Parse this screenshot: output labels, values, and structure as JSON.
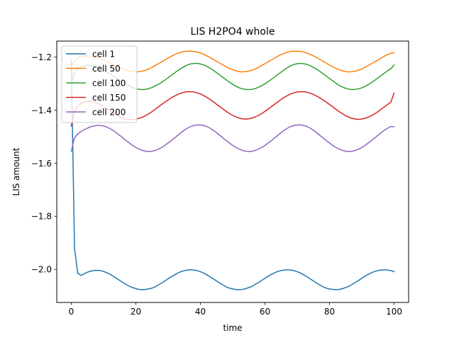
{
  "chart_data": {
    "type": "line",
    "title": "LIS H2PO4 whole",
    "xlabel": "time",
    "ylabel": "LIS amount",
    "xlim": [
      -4.5,
      104.5
    ],
    "ylim": [
      -2.125,
      -1.14
    ],
    "xticks": [
      0,
      20,
      40,
      60,
      80,
      100
    ],
    "yticks": [
      -2.0,
      -1.8,
      -1.6,
      -1.4,
      -1.2
    ],
    "ytick_labels": [
      "−2.0",
      "−1.8",
      "−1.6",
      "−1.4",
      "−1.2"
    ],
    "grid": false,
    "legend_position": "top-left",
    "x": [
      0,
      1,
      2,
      3,
      4,
      5,
      6,
      7,
      8,
      9,
      10,
      11,
      12,
      13,
      14,
      15,
      16,
      17,
      18,
      19,
      20,
      21,
      22,
      23,
      24,
      25,
      26,
      27,
      28,
      29,
      30,
      31,
      32,
      33,
      34,
      35,
      36,
      37,
      38,
      39,
      40,
      41,
      42,
      43,
      44,
      45,
      46,
      47,
      48,
      49,
      50,
      51,
      52,
      53,
      54,
      55,
      56,
      57,
      58,
      59,
      60,
      61,
      62,
      63,
      64,
      65,
      66,
      67,
      68,
      69,
      70,
      71,
      72,
      73,
      74,
      75,
      76,
      77,
      78,
      79,
      80,
      81,
      82,
      83,
      84,
      85,
      86,
      87,
      88,
      89,
      90,
      91,
      92,
      93,
      94,
      95,
      96,
      97,
      98,
      99,
      100
    ],
    "series": [
      {
        "name": "cell 1",
        "color": "#1f77b4",
        "values": [
          -1.21,
          -1.92,
          -2.015,
          -2.023,
          -2.017,
          -2.011,
          -2.007,
          -2.005,
          -2.004,
          -2.005,
          -2.008,
          -2.013,
          -2.019,
          -2.026,
          -2.034,
          -2.042,
          -2.05,
          -2.057,
          -2.064,
          -2.069,
          -2.073,
          -2.076,
          -2.077,
          -2.076,
          -2.074,
          -2.071,
          -2.066,
          -2.059,
          -2.052,
          -2.044,
          -2.036,
          -2.028,
          -2.021,
          -2.014,
          -2.009,
          -2.005,
          -2.003,
          -2.002,
          -2.003,
          -2.005,
          -2.009,
          -2.014,
          -2.021,
          -2.028,
          -2.036,
          -2.044,
          -2.052,
          -2.059,
          -2.066,
          -2.071,
          -2.074,
          -2.076,
          -2.077,
          -2.076,
          -2.073,
          -2.069,
          -2.064,
          -2.057,
          -2.05,
          -2.042,
          -2.034,
          -2.026,
          -2.019,
          -2.013,
          -2.008,
          -2.005,
          -2.003,
          -2.002,
          -2.003,
          -2.005,
          -2.009,
          -2.014,
          -2.021,
          -2.028,
          -2.036,
          -2.044,
          -2.052,
          -2.059,
          -2.066,
          -2.071,
          -2.074,
          -2.076,
          -2.077,
          -2.076,
          -2.073,
          -2.069,
          -2.064,
          -2.057,
          -2.05,
          -2.042,
          -2.034,
          -2.026,
          -2.019,
          -2.013,
          -2.008,
          -2.005,
          -2.003,
          -2.002,
          -2.003,
          -2.005,
          -2.009
        ]
      },
      {
        "name": "cell 50",
        "color": "#ff7f0e",
        "values": [
          -1.235,
          -1.215,
          -1.203,
          -1.199,
          -1.197,
          -1.196,
          -1.197,
          -1.199,
          -1.202,
          -1.206,
          -1.211,
          -1.217,
          -1.223,
          -1.229,
          -1.235,
          -1.241,
          -1.246,
          -1.25,
          -1.253,
          -1.255,
          -1.256,
          -1.255,
          -1.253,
          -1.25,
          -1.245,
          -1.239,
          -1.232,
          -1.225,
          -1.218,
          -1.211,
          -1.204,
          -1.197,
          -1.191,
          -1.186,
          -1.182,
          -1.179,
          -1.178,
          -1.178,
          -1.179,
          -1.181,
          -1.185,
          -1.19,
          -1.196,
          -1.202,
          -1.209,
          -1.216,
          -1.223,
          -1.23,
          -1.237,
          -1.243,
          -1.248,
          -1.252,
          -1.255,
          -1.256,
          -1.255,
          -1.253,
          -1.25,
          -1.245,
          -1.239,
          -1.232,
          -1.225,
          -1.218,
          -1.211,
          -1.204,
          -1.197,
          -1.191,
          -1.186,
          -1.182,
          -1.179,
          -1.178,
          -1.178,
          -1.179,
          -1.181,
          -1.185,
          -1.19,
          -1.196,
          -1.202,
          -1.209,
          -1.216,
          -1.223,
          -1.23,
          -1.237,
          -1.243,
          -1.248,
          -1.252,
          -1.255,
          -1.256,
          -1.255,
          -1.253,
          -1.25,
          -1.245,
          -1.239,
          -1.232,
          -1.225,
          -1.218,
          -1.211,
          -1.204,
          -1.197,
          -1.191,
          -1.186,
          -1.184
        ]
      },
      {
        "name": "cell 100",
        "color": "#2ca02c",
        "values": [
          -1.3,
          -1.26,
          -1.244,
          -1.237,
          -1.233,
          -1.231,
          -1.232,
          -1.234,
          -1.238,
          -1.243,
          -1.249,
          -1.256,
          -1.264,
          -1.272,
          -1.28,
          -1.288,
          -1.296,
          -1.303,
          -1.309,
          -1.315,
          -1.319,
          -1.322,
          -1.323,
          -1.322,
          -1.319,
          -1.315,
          -1.309,
          -1.303,
          -1.295,
          -1.287,
          -1.278,
          -1.269,
          -1.26,
          -1.251,
          -1.243,
          -1.236,
          -1.23,
          -1.226,
          -1.224,
          -1.224,
          -1.226,
          -1.23,
          -1.235,
          -1.242,
          -1.25,
          -1.259,
          -1.268,
          -1.277,
          -1.286,
          -1.295,
          -1.303,
          -1.31,
          -1.316,
          -1.32,
          -1.322,
          -1.323,
          -1.322,
          -1.319,
          -1.314,
          -1.308,
          -1.301,
          -1.293,
          -1.284,
          -1.275,
          -1.266,
          -1.257,
          -1.248,
          -1.24,
          -1.233,
          -1.228,
          -1.225,
          -1.224,
          -1.225,
          -1.228,
          -1.233,
          -1.239,
          -1.246,
          -1.254,
          -1.263,
          -1.272,
          -1.281,
          -1.29,
          -1.299,
          -1.307,
          -1.313,
          -1.318,
          -1.321,
          -1.323,
          -1.322,
          -1.32,
          -1.316,
          -1.311,
          -1.304,
          -1.296,
          -1.288,
          -1.279,
          -1.27,
          -1.261,
          -1.252,
          -1.244,
          -1.23
        ]
      },
      {
        "name": "cell 150",
        "color": "#d62728",
        "values": [
          -1.46,
          -1.405,
          -1.385,
          -1.375,
          -1.369,
          -1.367,
          -1.367,
          -1.369,
          -1.373,
          -1.379,
          -1.386,
          -1.394,
          -1.403,
          -1.411,
          -1.419,
          -1.426,
          -1.431,
          -1.434,
          -1.436,
          -1.436,
          -1.434,
          -1.431,
          -1.427,
          -1.421,
          -1.414,
          -1.406,
          -1.397,
          -1.388,
          -1.379,
          -1.37,
          -1.362,
          -1.354,
          -1.347,
          -1.341,
          -1.336,
          -1.333,
          -1.331,
          -1.331,
          -1.332,
          -1.335,
          -1.339,
          -1.345,
          -1.352,
          -1.36,
          -1.369,
          -1.378,
          -1.387,
          -1.396,
          -1.405,
          -1.413,
          -1.42,
          -1.426,
          -1.43,
          -1.433,
          -1.434,
          -1.433,
          -1.43,
          -1.426,
          -1.42,
          -1.413,
          -1.405,
          -1.396,
          -1.387,
          -1.378,
          -1.369,
          -1.36,
          -1.352,
          -1.345,
          -1.339,
          -1.335,
          -1.332,
          -1.331,
          -1.331,
          -1.333,
          -1.336,
          -1.341,
          -1.347,
          -1.354,
          -1.362,
          -1.37,
          -1.379,
          -1.388,
          -1.397,
          -1.406,
          -1.414,
          -1.421,
          -1.427,
          -1.431,
          -1.434,
          -1.435,
          -1.434,
          -1.431,
          -1.427,
          -1.421,
          -1.414,
          -1.406,
          -1.397,
          -1.388,
          -1.379,
          -1.37,
          -1.336
        ]
      },
      {
        "name": "cell 200",
        "color": "#9467bd",
        "values": [
          -1.555,
          -1.505,
          -1.49,
          -1.481,
          -1.474,
          -1.468,
          -1.463,
          -1.46,
          -1.458,
          -1.458,
          -1.46,
          -1.464,
          -1.47,
          -1.477,
          -1.486,
          -1.495,
          -1.505,
          -1.515,
          -1.524,
          -1.533,
          -1.541,
          -1.547,
          -1.552,
          -1.555,
          -1.556,
          -1.555,
          -1.552,
          -1.547,
          -1.541,
          -1.533,
          -1.524,
          -1.515,
          -1.505,
          -1.495,
          -1.485,
          -1.476,
          -1.468,
          -1.462,
          -1.458,
          -1.456,
          -1.456,
          -1.458,
          -1.462,
          -1.468,
          -1.476,
          -1.485,
          -1.495,
          -1.505,
          -1.515,
          -1.524,
          -1.533,
          -1.541,
          -1.547,
          -1.552,
          -1.555,
          -1.556,
          -1.555,
          -1.552,
          -1.547,
          -1.541,
          -1.533,
          -1.524,
          -1.515,
          -1.505,
          -1.495,
          -1.485,
          -1.476,
          -1.468,
          -1.462,
          -1.458,
          -1.456,
          -1.456,
          -1.458,
          -1.462,
          -1.468,
          -1.476,
          -1.485,
          -1.495,
          -1.505,
          -1.515,
          -1.524,
          -1.533,
          -1.541,
          -1.547,
          -1.552,
          -1.555,
          -1.556,
          -1.555,
          -1.552,
          -1.547,
          -1.541,
          -1.533,
          -1.524,
          -1.515,
          -1.505,
          -1.495,
          -1.485,
          -1.476,
          -1.468,
          -1.462,
          -1.463
        ]
      }
    ]
  }
}
